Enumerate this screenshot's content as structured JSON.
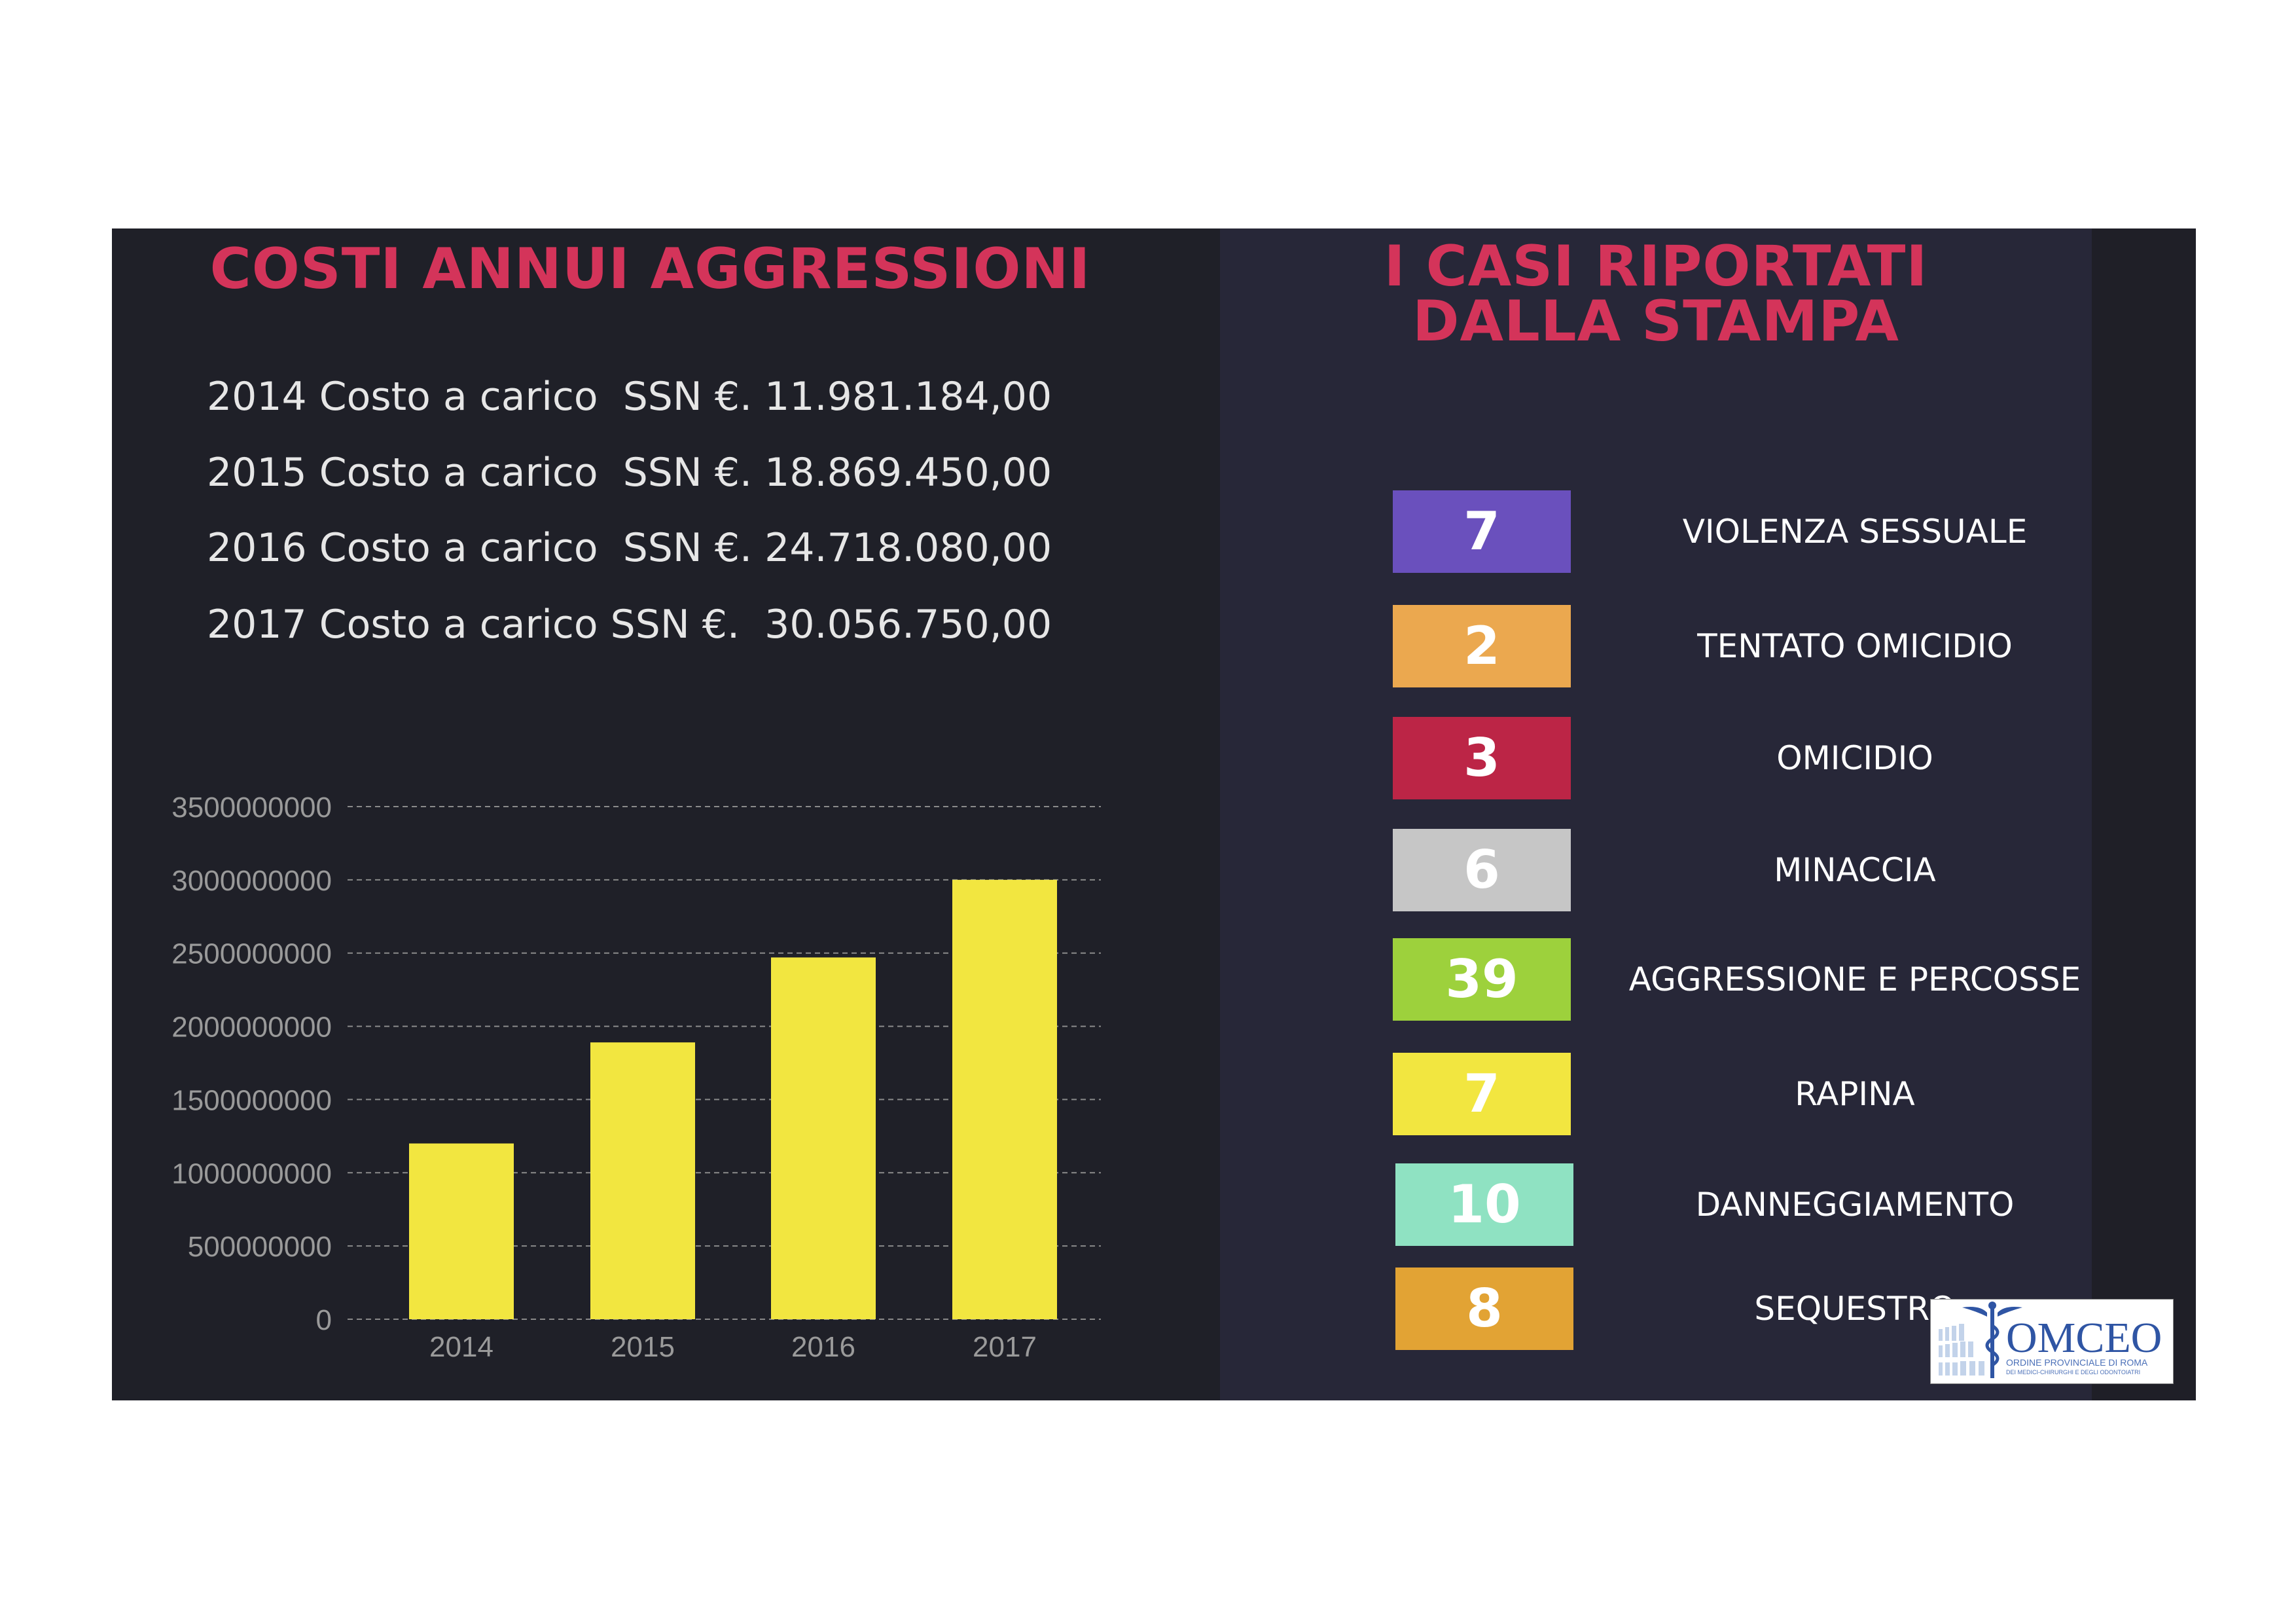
{
  "left": {
    "title": "COSTI ANNUI AGGRESSIONI",
    "cost_lines": [
      "2014 Costo a carico  SSN €. 11.981.184,00",
      "2015 Costo a carico  SSN €. 18.869.450,00",
      "2016 Costo a carico  SSN €. 24.718.080,00",
      "2017 Costo a carico SSN €.  30.056.750,00"
    ]
  },
  "chart_data": {
    "type": "bar",
    "categories": [
      "2014",
      "2015",
      "2016",
      "2017"
    ],
    "values": [
      1200000000,
      1890000000,
      2470000000,
      3000000000
    ],
    "yticks": [
      "0",
      "500000000",
      "1000000000",
      "1500000000",
      "2000000000",
      "2500000000",
      "3000000000",
      "3500000000"
    ],
    "ylim": [
      0,
      3500000000
    ],
    "grid": true,
    "color": "#f2e640",
    "title": "",
    "xlabel": "",
    "ylabel": ""
  },
  "right": {
    "title_line1": "I CASI RIPORTATI",
    "title_line2": "DALLA STAMPA",
    "cases": [
      {
        "count": "7",
        "label": "VIOLENZA SESSUALE",
        "color": "#6a50bd"
      },
      {
        "count": "2",
        "label": "TENTATO OMICIDIO",
        "color": "#eba84f"
      },
      {
        "count": "3",
        "label": "OMICIDIO",
        "color": "#bc2546"
      },
      {
        "count": "6",
        "label": "MINACCIA",
        "color": "#c6c6c6"
      },
      {
        "count": "39",
        "label": "AGGRESSIONE E PERCOSSE",
        "color": "#9dd13c"
      },
      {
        "count": "7",
        "label": "RAPINA",
        "color": "#f2e640"
      },
      {
        "count": "10",
        "label": "DANNEGGIAMENTO",
        "color": "#8fe2c2"
      },
      {
        "count": "8",
        "label": "SEQUESTRO",
        "color": "#e2a334"
      }
    ]
  },
  "logo": {
    "name": "OMCEO",
    "line1": "ORDINE PROVINCIALE DI ROMA",
    "line2": "DEI MEDICI-CHIRURGHI E DEGLI ODONTOIATRI"
  }
}
